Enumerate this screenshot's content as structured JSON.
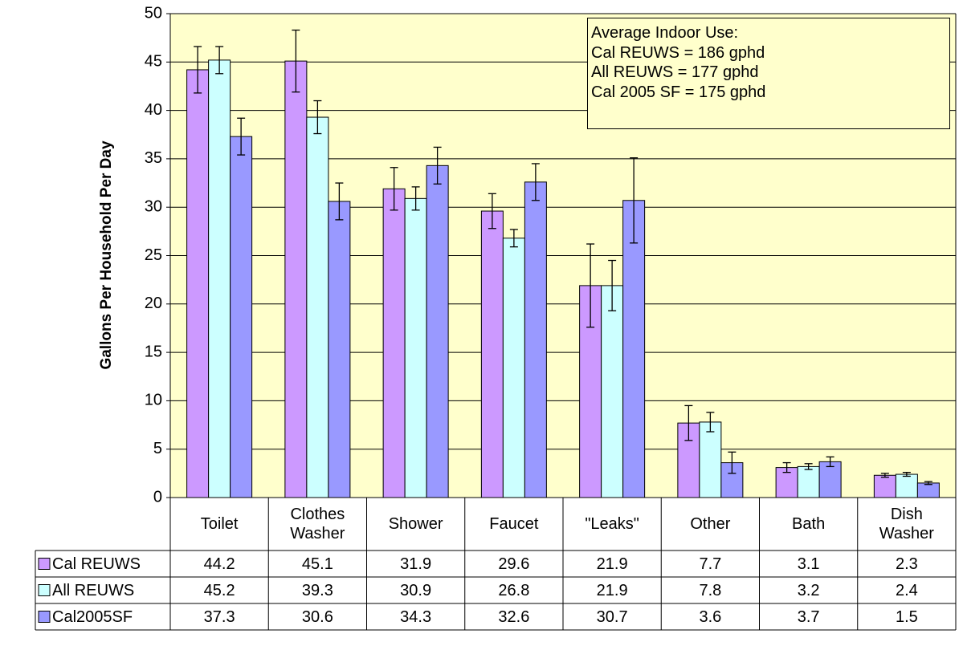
{
  "chart_data": {
    "type": "bar",
    "y_label": "Gallons Per Household Per Day",
    "categories": [
      "Toilet",
      "Clothes Washer",
      "Shower",
      "Faucet",
      "\"Leaks\"",
      "Other",
      "Bath",
      "Dish Washer"
    ],
    "series": [
      {
        "name": "Cal REUWS",
        "color": "#cc99ff",
        "values": [
          44.2,
          45.1,
          31.9,
          29.6,
          21.9,
          7.7,
          3.1,
          2.3
        ],
        "errors": [
          2.4,
          3.2,
          2.2,
          1.8,
          4.3,
          1.8,
          0.5,
          0.2
        ]
      },
      {
        "name": "All REUWS",
        "color": "#ccffff",
        "values": [
          45.2,
          39.3,
          30.9,
          26.8,
          21.9,
          7.8,
          3.2,
          2.4
        ],
        "errors": [
          1.4,
          1.7,
          1.2,
          0.9,
          2.6,
          1.0,
          0.3,
          0.2
        ]
      },
      {
        "name": "Cal2005SF",
        "color": "#9999ff",
        "values": [
          37.3,
          30.6,
          34.3,
          32.6,
          30.7,
          3.6,
          3.7,
          1.5
        ],
        "errors": [
          1.9,
          1.9,
          1.9,
          1.9,
          4.4,
          1.1,
          0.5,
          0.15
        ]
      }
    ],
    "annotation": [
      "Average Indoor Use:",
      "Cal REUWS = 186 gphd",
      "All REUWS = 177 gphd",
      "Cal 2005 SF = 175 gphd"
    ],
    "ylim": [
      0,
      50
    ],
    "yticks": [
      0,
      5,
      10,
      15,
      20,
      25,
      30,
      35,
      40,
      45,
      50
    ],
    "plot_background": "#ffffcc"
  }
}
